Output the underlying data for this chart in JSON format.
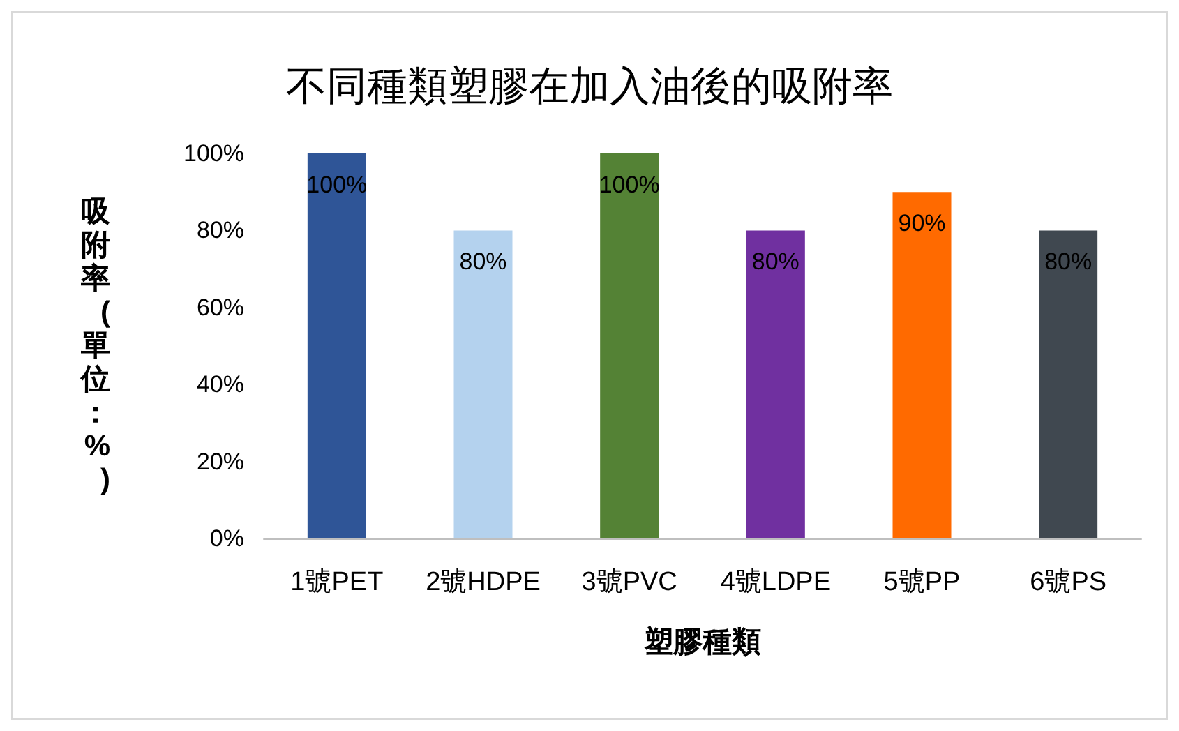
{
  "chart_data": {
    "type": "bar",
    "title": "不同種類塑膠在加入油後的吸附率",
    "xlabel": "塑膠種類",
    "ylabel": "吸附率(單位：%)",
    "categories": [
      "1號PET",
      "2號HDPE",
      "3號PVC",
      "4號LDPE",
      "5號PP",
      "6號PS"
    ],
    "values": [
      100,
      80,
      100,
      80,
      90,
      80
    ],
    "colors": [
      "#2f5597",
      "#b4d2ee",
      "#548235",
      "#7030a0",
      "#ff6a00",
      "#404850"
    ],
    "value_labels": [
      "100%",
      "80%",
      "100%",
      "80%",
      "90%",
      "80%"
    ],
    "ylim": [
      0,
      100
    ],
    "yticks": [
      {
        "value": 0,
        "label": "0%"
      },
      {
        "value": 20,
        "label": "20%"
      },
      {
        "value": 40,
        "label": "40%"
      },
      {
        "value": 60,
        "label": "60%"
      },
      {
        "value": 80,
        "label": "80%"
      },
      {
        "value": 100,
        "label": "100%"
      }
    ],
    "grid": false
  }
}
